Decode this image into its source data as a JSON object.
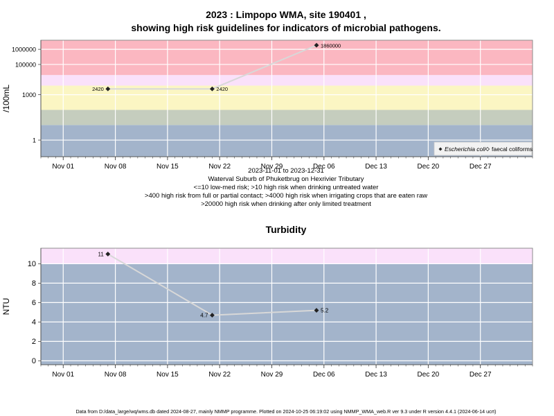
{
  "chart_data": [
    {
      "type": "line",
      "title_line1": "2023 : Limpopo WMA, site 190401 ,",
      "title_line2": "showing high risk guidelines for indicators of microbial pathogens.",
      "ylabel": "/100mL",
      "yscale": "log",
      "ylim": [
        0.08,
        4000000
      ],
      "y_ticks": [
        {
          "value": 1,
          "label": "1"
        },
        {
          "value": 1000,
          "label": "1000"
        },
        {
          "value": 100000,
          "label": "100000"
        },
        {
          "value": 1000000,
          "label": "1000000"
        }
      ],
      "x_ticks": [
        "Nov 01",
        "Nov 08",
        "Nov 15",
        "Nov 22",
        "Nov 29",
        "Dec 06",
        "Dec 13",
        "Dec 20",
        "Dec 27"
      ],
      "x_tick_dates": [
        "2023-11-01",
        "2023-11-08",
        "2023-11-15",
        "2023-11-22",
        "2023-11-29",
        "2023-12-06",
        "2023-12-13",
        "2023-12-20",
        "2023-12-27"
      ],
      "xlim": [
        "2023-10-29",
        "2024-01-03"
      ],
      "bands": [
        {
          "from": 0.08,
          "to": 10,
          "color": "#a3b4cb"
        },
        {
          "from": 10,
          "to": 100,
          "color": "#c5cdbe"
        },
        {
          "from": 100,
          "to": 4000,
          "color": "#fbf6c3"
        },
        {
          "from": 4000,
          "to": 20000,
          "color": "#fae1fa"
        },
        {
          "from": 20000,
          "to": 4000000,
          "color": "#fbb7c1"
        }
      ],
      "series": [
        {
          "name": "Escherichia coli",
          "marker": "filled-diamond",
          "points": [
            {
              "x": "2023-11-07",
              "y": 2420,
              "label": "2420",
              "label_side": "left"
            },
            {
              "x": "2023-11-21",
              "y": 2420,
              "label": "2420",
              "label_side": "right"
            },
            {
              "x": "2023-12-05",
              "y": 1860000,
              "label": "1860000",
              "label_side": "right"
            }
          ]
        },
        {
          "name": "faecal coliforms",
          "marker": "open-diamond",
          "points": []
        }
      ],
      "legend_position": "bottom-right",
      "notes": [
        "2023-11-01 to 2023-12-31",
        "Waterval Suburb of Phuketbrug on Hexrivier Tributary",
        "<=10 low-med risk; >10 high risk when drinking untreated water",
        ">400 high risk from full or partial contact; >4000 high risk when irrigating crops that are eaten raw",
        ">20000 high risk when drinking after only limited treatment"
      ]
    },
    {
      "type": "line",
      "title": "Turbidity",
      "ylabel": "NTU",
      "ylim": [
        -0.4,
        11.6
      ],
      "y_ticks": [
        0,
        2,
        4,
        6,
        8,
        10
      ],
      "x_ticks": [
        "Nov 01",
        "Nov 08",
        "Nov 15",
        "Nov 22",
        "Nov 29",
        "Dec 06",
        "Dec 13",
        "Dec 20",
        "Dec 27"
      ],
      "x_tick_dates": [
        "2023-11-01",
        "2023-11-08",
        "2023-11-15",
        "2023-11-22",
        "2023-11-29",
        "2023-12-06",
        "2023-12-13",
        "2023-12-20",
        "2023-12-27"
      ],
      "xlim": [
        "2023-10-29",
        "2024-01-03"
      ],
      "bands": [
        {
          "from": -0.4,
          "to": 10,
          "color": "#a3b4cb"
        },
        {
          "from": 10,
          "to": 11.6,
          "color": "#fae1fa"
        }
      ],
      "series": [
        {
          "marker": "filled-diamond",
          "points": [
            {
              "x": "2023-11-07",
              "y": 11,
              "label": "11",
              "label_side": "left"
            },
            {
              "x": "2023-11-21",
              "y": 4.7,
              "label": "4.7",
              "label_side": "left"
            },
            {
              "x": "2023-12-05",
              "y": 5.2,
              "label": "5.2",
              "label_side": "right"
            }
          ]
        }
      ]
    }
  ],
  "footer": "Data from D:/data_large/wq/wms.db dated 2024-08-27, mainly NMMP programme. Plotted on 2024-10-25 06:19:02 using NMMP_WMA_web.R ver 9.3 under R version 4.4.1 (2024-06-14 ucrt)",
  "colors": {
    "grid": "#ffffff",
    "line": "#d8d8d8",
    "marker": "#222222",
    "axis": "#444444",
    "plot_border": "#8c8c8c"
  }
}
